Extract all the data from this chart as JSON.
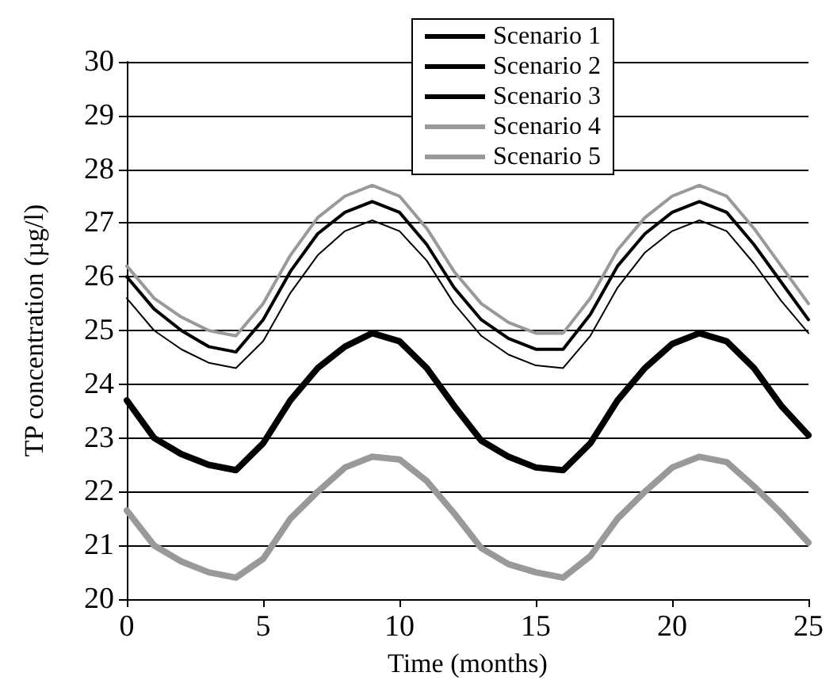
{
  "chart_data": {
    "type": "line",
    "xlabel": "Time (months)",
    "ylabel": "TP concentration (µg/l)",
    "x": [
      0,
      1,
      2,
      3,
      4,
      5,
      6,
      7,
      8,
      9,
      10,
      11,
      12,
      13,
      14,
      15,
      16,
      17,
      18,
      19,
      20,
      21,
      22,
      23,
      24,
      25
    ],
    "series": [
      {
        "name": "Scenario 1",
        "color": "#000000",
        "values": [
          25.6,
          25.0,
          24.65,
          24.4,
          24.3,
          24.8,
          25.7,
          26.4,
          26.85,
          27.05,
          26.85,
          26.3,
          25.5,
          24.9,
          24.55,
          24.35,
          24.3,
          24.9,
          25.8,
          26.45,
          26.85,
          27.05,
          26.85,
          26.25,
          25.55,
          24.95
        ]
      },
      {
        "name": "Scenario 2",
        "color": "#000000",
        "values": [
          26.0,
          25.4,
          25.0,
          24.7,
          24.6,
          25.2,
          26.1,
          26.8,
          27.2,
          27.4,
          27.2,
          26.6,
          25.8,
          25.2,
          24.85,
          24.65,
          24.65,
          25.3,
          26.2,
          26.8,
          27.2,
          27.4,
          27.2,
          26.6,
          25.9,
          25.2
        ]
      },
      {
        "name": "Scenario 3",
        "color": "#000000",
        "values": [
          23.7,
          23.0,
          22.7,
          22.5,
          22.4,
          22.9,
          23.7,
          24.3,
          24.7,
          24.95,
          24.8,
          24.3,
          23.6,
          22.95,
          22.65,
          22.45,
          22.4,
          22.9,
          23.7,
          24.3,
          24.75,
          24.95,
          24.8,
          24.3,
          23.6,
          23.05
        ]
      },
      {
        "name": "Scenario 4",
        "color": "#999999",
        "values": [
          26.2,
          25.6,
          25.25,
          25.0,
          24.9,
          25.5,
          26.4,
          27.1,
          27.5,
          27.7,
          27.5,
          26.9,
          26.1,
          25.5,
          25.15,
          24.95,
          24.95,
          25.6,
          26.5,
          27.1,
          27.5,
          27.7,
          27.5,
          26.9,
          26.2,
          25.5
        ]
      },
      {
        "name": "Scenario 5",
        "color": "#999999",
        "values": [
          21.65,
          21.0,
          20.7,
          20.5,
          20.4,
          20.75,
          21.5,
          22.0,
          22.45,
          22.65,
          22.6,
          22.2,
          21.6,
          20.95,
          20.65,
          20.5,
          20.4,
          20.8,
          21.5,
          22.0,
          22.45,
          22.65,
          22.55,
          22.1,
          21.6,
          21.05
        ]
      }
    ],
    "xlim": [
      0,
      25
    ],
    "xticks": [
      0,
      5,
      10,
      15,
      20,
      25
    ],
    "ylim": [
      20,
      30
    ],
    "yticks": [
      20,
      21,
      22,
      23,
      24,
      25,
      26,
      27,
      28,
      29,
      30
    ],
    "grid": "y",
    "legend": "top right",
    "marker": "none",
    "line_style": "solid"
  }
}
